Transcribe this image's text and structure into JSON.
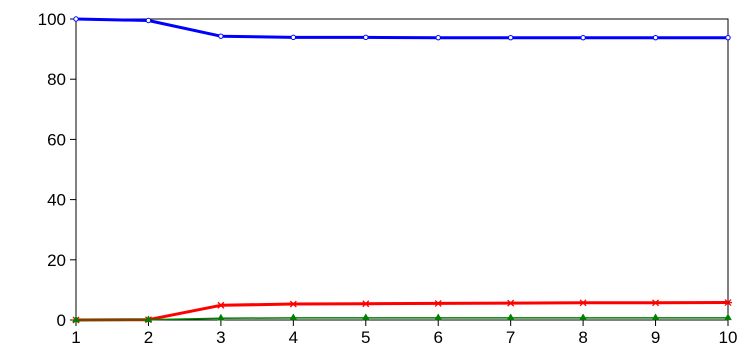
{
  "chart_data": {
    "type": "line",
    "title": "",
    "xlabel": "",
    "ylabel": "",
    "x": [
      1,
      2,
      3,
      4,
      5,
      6,
      7,
      8,
      9,
      10
    ],
    "xlim": [
      1,
      10
    ],
    "ylim": [
      0,
      100
    ],
    "x_ticks": [
      "1",
      "2",
      "3",
      "4",
      "5",
      "6",
      "7",
      "8",
      "9",
      "10"
    ],
    "y_ticks": [
      "0",
      "20",
      "40",
      "60",
      "80",
      "100"
    ],
    "y_tick_values": [
      0,
      20,
      40,
      60,
      80,
      100
    ],
    "grid": false,
    "legend": "none",
    "series": [
      {
        "color": "#0000ff",
        "marker": "circle",
        "values": [
          100,
          99.5,
          94.3,
          93.9,
          93.9,
          93.8,
          93.8,
          93.8,
          93.8,
          93.8
        ]
      },
      {
        "color": "#ff0000",
        "marker": "asterisk",
        "values": [
          0,
          0.1,
          4.9,
          5.3,
          5.4,
          5.5,
          5.6,
          5.7,
          5.7,
          5.8
        ]
      },
      {
        "color": "#008000",
        "marker": "triangle",
        "values": [
          0,
          0.05,
          0.6,
          0.7,
          0.7,
          0.7,
          0.7,
          0.7,
          0.7,
          0.7
        ]
      }
    ]
  }
}
